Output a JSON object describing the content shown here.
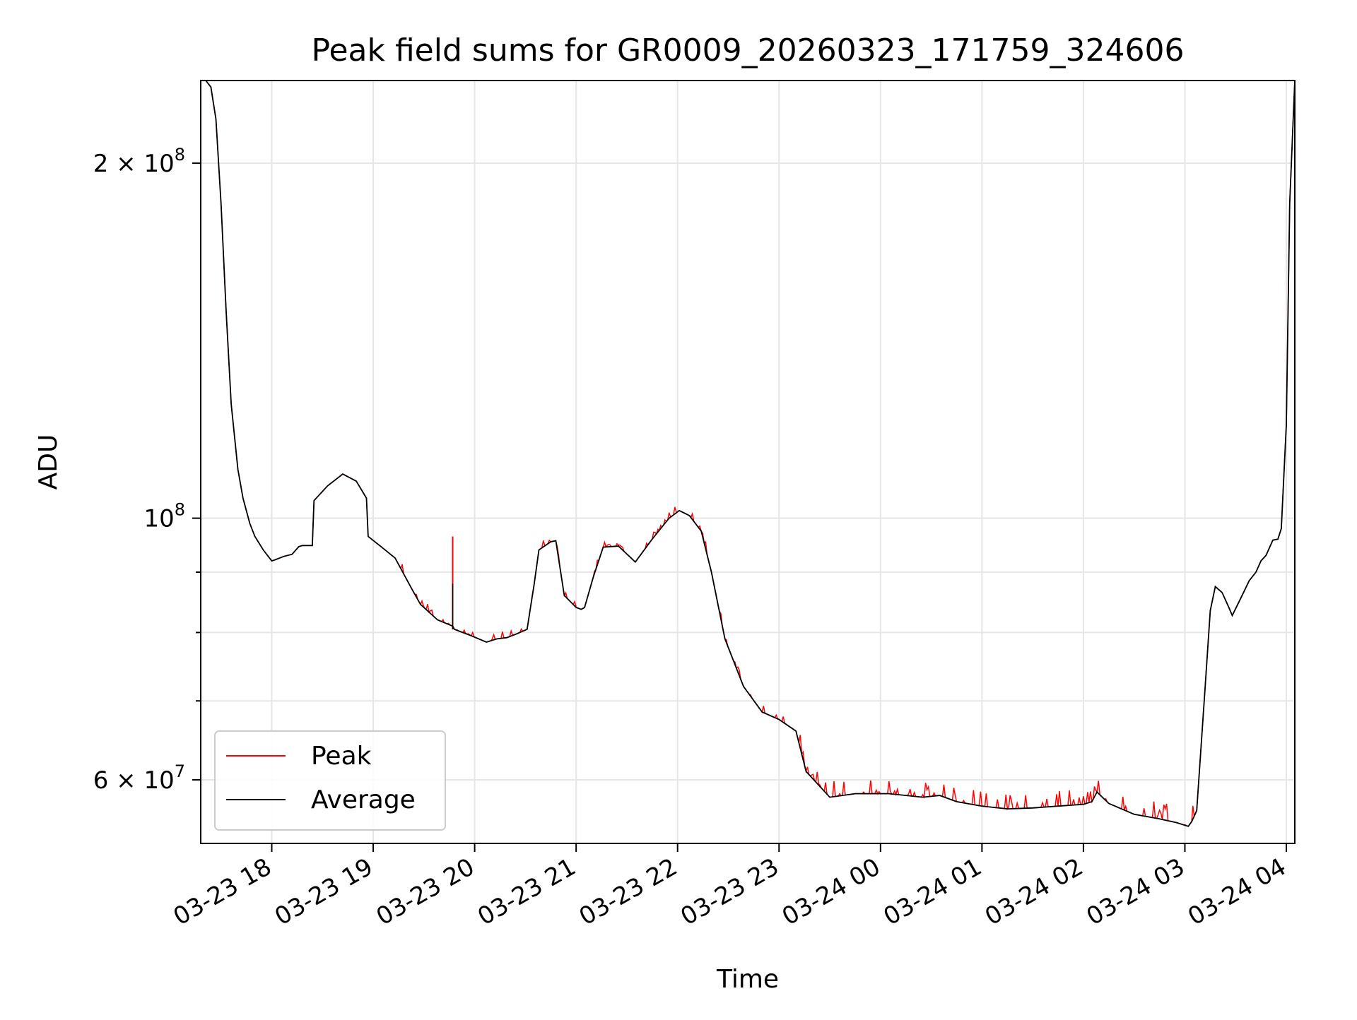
{
  "chart_data": {
    "type": "line",
    "title": "Peak field sums for GR0009_20260323_171759_324606",
    "xlabel": "Time",
    "ylabel": "ADU",
    "xlim": [
      "2026-03-23 17:18",
      "2026-03-24 04:05"
    ],
    "ylim": [
      53000000,
      235000000
    ],
    "yscale": "log",
    "grid": true,
    "legend": {
      "placement": "lower-left",
      "entries": [
        "Peak",
        "Average"
      ]
    },
    "x_ticks": [
      "03-23 18",
      "03-23 19",
      "03-23 20",
      "03-23 21",
      "03-23 22",
      "03-23 23",
      "03-24 00",
      "03-24 01",
      "03-24 02",
      "03-24 03",
      "03-24 04"
    ],
    "y_ticks_major": [
      "2 × 10^8",
      "10^8",
      "6 × 10^7"
    ],
    "colors": {
      "Peak": "#ff0000",
      "Average": "#000000",
      "grid": "#e6e6e6"
    },
    "series": [
      {
        "name": "Average",
        "color": "#000000",
        "x": [
          "2026-03-23 17:18",
          "2026-03-23 17:21",
          "2026-03-23 17:24",
          "2026-03-23 17:27",
          "2026-03-23 17:30",
          "2026-03-23 17:33",
          "2026-03-23 17:36",
          "2026-03-23 17:40",
          "2026-03-23 17:43",
          "2026-03-23 17:47",
          "2026-03-23 17:50",
          "2026-03-23 17:55",
          "2026-03-23 18:00",
          "2026-03-23 18:02",
          "2026-03-23 18:07",
          "2026-03-23 18:12",
          "2026-03-23 18:16",
          "2026-03-23 18:18",
          "2026-03-23 18:24",
          "2026-03-23 18:25",
          "2026-03-23 18:33",
          "2026-03-23 18:42",
          "2026-03-23 18:50",
          "2026-03-23 18:56",
          "2026-03-23 18:57",
          "2026-03-23 19:05",
          "2026-03-23 19:13",
          "2026-03-23 19:23",
          "2026-03-23 19:28",
          "2026-03-23 19:38",
          "2026-03-23 19:47",
          "2026-03-23 19:48",
          "2026-03-23 19:58",
          "2026-03-23 20:07",
          "2026-03-23 20:13",
          "2026-03-23 20:19",
          "2026-03-23 20:25",
          "2026-03-23 20:31",
          "2026-03-23 20:33",
          "2026-03-23 20:35",
          "2026-03-23 20:38",
          "2026-03-23 20:45",
          "2026-03-23 20:48",
          "2026-03-23 20:53",
          "2026-03-23 21:00",
          "2026-03-23 21:03",
          "2026-03-23 21:05",
          "2026-03-23 21:10",
          "2026-03-23 21:16",
          "2026-03-23 21:25",
          "2026-03-23 21:35",
          "2026-03-23 21:45",
          "2026-03-23 21:55",
          "2026-03-23 22:01",
          "2026-03-23 22:07",
          "2026-03-23 22:14",
          "2026-03-23 22:20",
          "2026-03-23 22:28",
          "2026-03-23 22:39",
          "2026-03-23 22:50",
          "2026-03-23 23:00",
          "2026-03-23 23:10",
          "2026-03-23 23:16",
          "2026-03-23 23:30",
          "2026-03-23 23:45",
          "2026-03-24 00:05",
          "2026-03-24 00:25",
          "2026-03-24 00:35",
          "2026-03-24 00:45",
          "2026-03-24 01:00",
          "2026-03-24 01:15",
          "2026-03-24 01:30",
          "2026-03-24 01:45",
          "2026-03-24 02:00",
          "2026-03-24 02:05",
          "2026-03-24 02:08",
          "2026-03-24 02:15",
          "2026-03-24 02:30",
          "2026-03-24 02:45",
          "2026-03-24 02:55",
          "2026-03-24 03:02",
          "2026-03-24 03:04",
          "2026-03-24 03:07",
          "2026-03-24 03:12",
          "2026-03-24 03:15",
          "2026-03-24 03:18",
          "2026-03-24 03:22",
          "2026-03-24 03:26",
          "2026-03-24 03:28",
          "2026-03-24 03:33",
          "2026-03-24 03:38",
          "2026-03-24 03:42",
          "2026-03-24 03:45",
          "2026-03-24 03:48",
          "2026-03-24 03:52",
          "2026-03-24 03:55",
          "2026-03-24 03:57",
          "2026-03-24 04:00",
          "2026-03-24 04:02",
          "2026-03-24 04:05"
        ],
        "y": [
          235000000,
          235000000,
          232000000,
          218000000,
          185000000,
          150000000,
          125000000,
          110000000,
          104000000,
          99000000,
          96500000,
          94000000,
          92000000,
          92200000,
          92800000,
          93200000,
          94600000,
          94800000,
          94800000,
          103500000,
          106500000,
          109000000,
          107500000,
          104000000,
          96500000,
          94500000,
          92500000,
          87000000,
          84500000,
          82000000,
          81000000,
          80500000,
          79500000,
          78500000,
          79000000,
          79200000,
          79800000,
          80500000,
          84000000,
          87500000,
          94000000,
          95500000,
          95700000,
          86000000,
          84000000,
          83700000,
          84000000,
          89000000,
          94500000,
          94700000,
          91800000,
          96000000,
          100000000,
          101500000,
          100500000,
          97500000,
          90000000,
          79000000,
          72000000,
          68500000,
          67500000,
          66000000,
          61000000,
          58000000,
          58400000,
          58400000,
          58000000,
          58200000,
          57500000,
          57000000,
          56700000,
          56800000,
          57000000,
          57200000,
          57500000,
          58600000,
          57300000,
          56100000,
          55600000,
          55200000,
          54800000,
          55300000,
          56500000,
          72000000,
          83500000,
          87500000,
          86500000,
          84000000,
          82700000,
          85500000,
          88500000,
          90000000,
          92000000,
          93000000,
          95800000,
          96000000,
          98000000,
          120000000,
          185000000,
          235000000
        ]
      },
      {
        "name": "Peak",
        "color": "#ff0000",
        "note_spikes_y_max": [
          96500000,
          60000000,
          58500000,
          56500000
        ]
      }
    ]
  }
}
